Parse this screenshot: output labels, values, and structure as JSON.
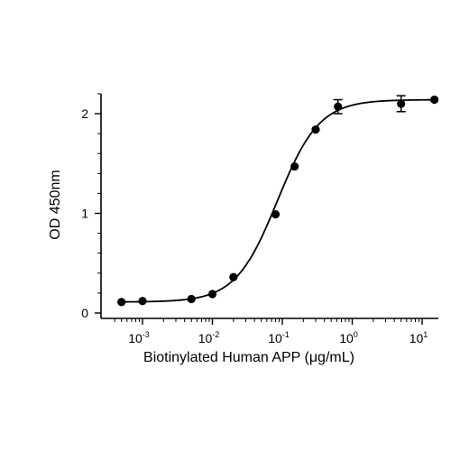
{
  "chart_data": {
    "type": "scatter",
    "xlabel": "Biotinylated Human APP (μg/mL)",
    "ylabel": "OD 450nm",
    "x_scale": "log",
    "xlim": [
      0.0004,
      15
    ],
    "ylim": [
      0,
      2.2
    ],
    "grid": false,
    "x_ticks": [
      {
        "value": 0.001,
        "base": "10",
        "exp": "-3"
      },
      {
        "value": 0.01,
        "base": "10",
        "exp": "-2"
      },
      {
        "value": 0.1,
        "base": "10",
        "exp": "-1"
      },
      {
        "value": 1,
        "base": "10",
        "exp": "0"
      },
      {
        "value": 10,
        "base": "10",
        "exp": "1"
      }
    ],
    "y_ticks": [
      {
        "value": 0,
        "label": "0"
      },
      {
        "value": 1,
        "label": "1"
      },
      {
        "value": 2,
        "label": "2"
      }
    ],
    "series": [
      {
        "points": [
          {
            "x": 0.0005,
            "y": 0.11
          },
          {
            "x": 0.001,
            "y": 0.12
          },
          {
            "x": 0.005,
            "y": 0.14
          },
          {
            "x": 0.01,
            "y": 0.19
          },
          {
            "x": 0.02,
            "y": 0.36
          },
          {
            "x": 0.08,
            "y": 0.99
          },
          {
            "x": 0.15,
            "y": 1.47
          },
          {
            "x": 0.3,
            "y": 1.84
          },
          {
            "x": 0.625,
            "y": 2.07,
            "err": 0.07
          },
          {
            "x": 5,
            "y": 2.1,
            "err": 0.08
          },
          {
            "x": 15,
            "y": 2.14
          }
        ],
        "fit": {
          "model": "4PL",
          "bottom": 0.11,
          "top": 2.14,
          "ec50": 0.085,
          "hill": 1.45
        }
      }
    ]
  }
}
